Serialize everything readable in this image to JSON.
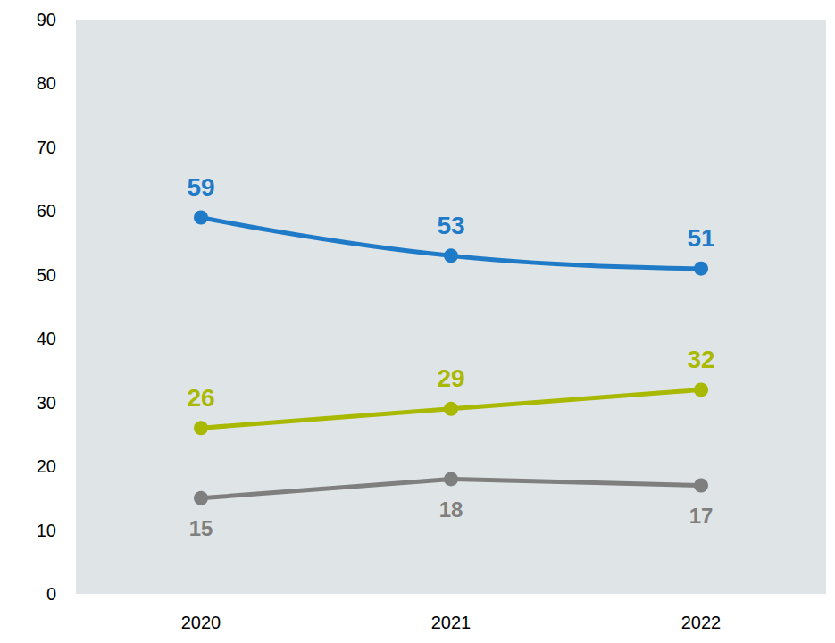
{
  "chart_data": {
    "type": "line",
    "categories": [
      "2020",
      "2021",
      "2022"
    ],
    "series": [
      {
        "color": "#1f7ac8",
        "values": [
          59,
          53,
          51
        ],
        "line_style": "smooth",
        "marker": "circle"
      },
      {
        "color": "#a9b800",
        "values": [
          26,
          29,
          32
        ],
        "line_style": "solid",
        "marker": "circle"
      },
      {
        "color": "#7f7f7f",
        "values": [
          15,
          18,
          17
        ],
        "line_style": "solid",
        "marker": "circle"
      }
    ],
    "ylim": [
      0,
      90
    ],
    "yticks": [
      0,
      10,
      20,
      30,
      40,
      50,
      60,
      70,
      80,
      90
    ],
    "grid": false,
    "data_labels": true
  }
}
